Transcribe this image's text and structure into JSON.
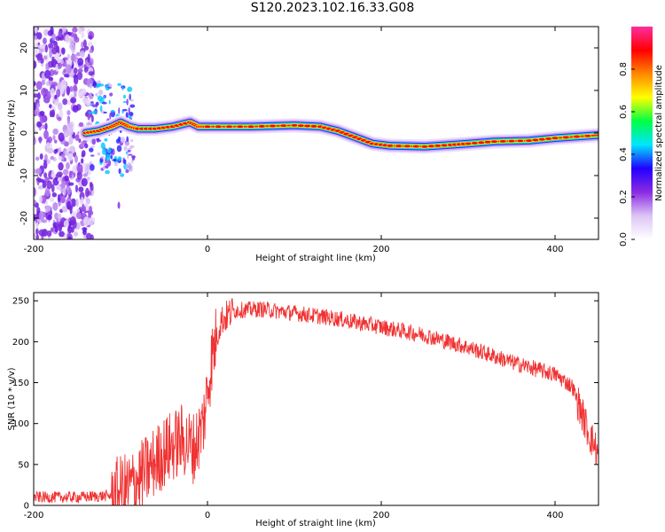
{
  "title": "S120.2023.102.16.33.G08",
  "chart_data": [
    {
      "type": "heatmap",
      "xlabel": "Height of straight line (km)",
      "ylabel": "Frequency (Hz)",
      "xlim": [
        -200,
        450
      ],
      "ylim": [
        -25,
        25
      ],
      "x_ticks": [
        -200,
        0,
        200,
        400
      ],
      "y_ticks": [
        -20,
        -10,
        0,
        10,
        20
      ],
      "colorbar": {
        "label": "Normalized spectral amplitude",
        "range": [
          0,
          1
        ],
        "ticks": [
          "0.0",
          "0.2",
          "0.4",
          "0.6",
          "0.8"
        ],
        "colormap": [
          "#ffffff",
          "#dcc4f5",
          "#8a2be2",
          "#2200ff",
          "#00e5ff",
          "#00ff44",
          "#ffff00",
          "#ff8800",
          "#ff0000",
          "#ff2da0"
        ]
      },
      "ridge": {
        "x": [
          -140,
          -125,
          -110,
          -100,
          -90,
          -80,
          -60,
          -40,
          -20,
          -10,
          0,
          50,
          100,
          130,
          150,
          170,
          190,
          210,
          250,
          280,
          300,
          330,
          370,
          400,
          450
        ],
        "frequency_hz": [
          0.0,
          0.5,
          1.5,
          2.5,
          1.5,
          1.0,
          1.0,
          1.5,
          2.5,
          1.5,
          1.5,
          1.5,
          1.8,
          1.5,
          0.5,
          -1.0,
          -2.5,
          -3.0,
          -3.2,
          -2.8,
          -2.5,
          -2.0,
          -1.8,
          -1.2,
          -0.5
        ]
      }
    },
    {
      "type": "line",
      "xlabel": "Height of straight line (km)",
      "ylabel": "SNR (10 * v/v)",
      "xlim": [
        -200,
        450
      ],
      "ylim": [
        0,
        260
      ],
      "x_ticks": [
        -200,
        0,
        200,
        400
      ],
      "y_ticks": [
        0,
        50,
        100,
        150,
        200,
        250
      ],
      "series": [
        {
          "color": "#f03232",
          "x": [
            -200,
            -150,
            -110,
            -90,
            -70,
            -50,
            -30,
            -15,
            -5,
            0,
            5,
            15,
            30,
            60,
            100,
            150,
            200,
            250,
            300,
            350,
            400,
            420,
            430,
            440,
            445,
            450
          ],
          "values": [
            10,
            10,
            12,
            22,
            42,
            65,
            80,
            70,
            100,
            140,
            180,
            225,
            238,
            240,
            235,
            228,
            218,
            208,
            193,
            175,
            160,
            145,
            115,
            85,
            75,
            60
          ]
        }
      ]
    }
  ]
}
